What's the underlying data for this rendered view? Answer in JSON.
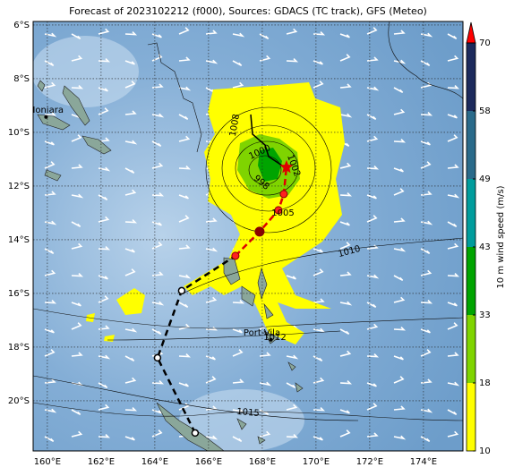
{
  "title": "Forecast of 2023102212 (f000), Sources: GDACS (TC track), GFS (Meteo)",
  "map": {
    "lonlim": [
      159.47,
      175.47
    ],
    "latlim": [
      -5.87,
      -21.87
    ],
    "lonticks": [
      {
        "value": 160,
        "label": "160°E"
      },
      {
        "value": 162,
        "label": "162°E"
      },
      {
        "value": 164,
        "label": "164°E"
      },
      {
        "value": 166,
        "label": "166°E"
      },
      {
        "value": 168,
        "label": "168°E"
      },
      {
        "value": 170,
        "label": "170°E"
      },
      {
        "value": 172,
        "label": "172°E"
      },
      {
        "value": 174,
        "label": "174°E"
      }
    ],
    "latticks": [
      {
        "value": -6,
        "label": "6°S"
      },
      {
        "value": -8,
        "label": "8°S"
      },
      {
        "value": -10,
        "label": "10°S"
      },
      {
        "value": -12,
        "label": "12°S"
      },
      {
        "value": -14,
        "label": "14°S"
      },
      {
        "value": -16,
        "label": "16°S"
      },
      {
        "value": -18,
        "label": "18°S"
      },
      {
        "value": -20,
        "label": "20°S"
      }
    ],
    "places": [
      {
        "label": "Honiara",
        "lon": 159.95,
        "lat": -9.43
      },
      {
        "label": "Port-Vila",
        "lon": 168.32,
        "lat": -17.73
      }
    ],
    "track": {
      "lon": [
        165.5,
        164.1,
        165.0,
        167.0,
        167.9,
        168.6,
        168.8,
        168.9
      ],
      "lat": [
        -21.2,
        -18.4,
        -15.9,
        -14.6,
        -13.7,
        -12.9,
        -12.3,
        -11.3
      ]
    },
    "isobar_labels": [
      1008,
      1010,
      1005,
      1012,
      1015,
      1000,
      1002,
      998
    ]
  },
  "colorbar": {
    "label": "10 m wind speed (m/s)",
    "levels": [
      10,
      18,
      33,
      43,
      49,
      58,
      70
    ],
    "colors": [
      "#ffff00",
      "#7fd400",
      "#00a400",
      "#009c9c",
      "#2a6a8a",
      "#1c2a5c"
    ],
    "extend_color": "#ff0000"
  }
}
